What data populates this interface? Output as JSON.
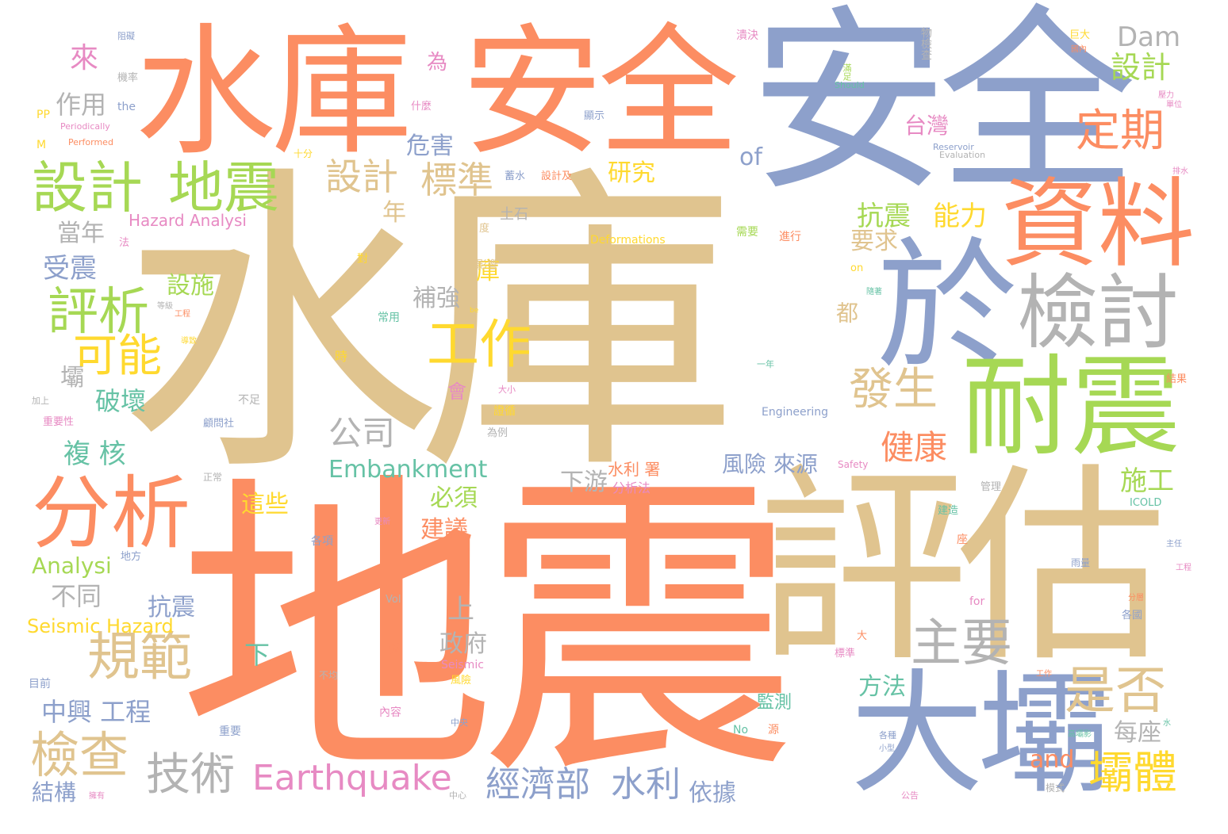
{
  "colors": {
    "tan": "#e0c48f",
    "orange": "#fc8d62",
    "blue": "#8da0cb",
    "green": "#a6d854",
    "gray": "#b3b3b3",
    "yellow": "#ffd92f",
    "pink": "#e78ac3",
    "teal": "#66c2a5"
  },
  "words": [
    {
      "text": "水庫",
      "color": "tan"
    },
    {
      "text": "地震",
      "color": "orange"
    },
    {
      "text": "安全",
      "color": "blue"
    },
    {
      "text": "水庫",
      "color": "orange"
    },
    {
      "text": "安全",
      "color": "orange"
    },
    {
      "text": "評估",
      "color": "tan"
    },
    {
      "text": "於",
      "color": "blue"
    },
    {
      "text": "資料",
      "color": "orange"
    },
    {
      "text": "耐震",
      "color": "green"
    },
    {
      "text": "檢討",
      "color": "gray"
    },
    {
      "text": "大壩",
      "color": "blue"
    },
    {
      "text": "分析",
      "color": "orange"
    },
    {
      "text": "設計",
      "color": "green"
    },
    {
      "text": "地震",
      "color": "green"
    },
    {
      "text": "評析",
      "color": "green"
    },
    {
      "text": "工作",
      "color": "yellow"
    },
    {
      "text": "規範",
      "color": "tan"
    },
    {
      "text": "主要",
      "color": "gray"
    },
    {
      "text": "是否",
      "color": "tan"
    },
    {
      "text": "發生",
      "color": "tan"
    },
    {
      "text": "定期",
      "color": "orange"
    },
    {
      "text": "檢查",
      "color": "tan"
    },
    {
      "text": "技術",
      "color": "gray"
    },
    {
      "text": "Earthquake",
      "color": "pink"
    },
    {
      "text": "壩體",
      "color": "yellow"
    },
    {
      "text": "可能",
      "color": "yellow"
    },
    {
      "text": "設計",
      "color": "tan"
    },
    {
      "text": "標準",
      "color": "tan"
    },
    {
      "text": "公司",
      "color": "gray"
    },
    {
      "text": "經濟部",
      "color": "blue"
    },
    {
      "text": "水利",
      "color": "blue"
    },
    {
      "text": "健康",
      "color": "orange"
    },
    {
      "text": "抗震",
      "color": "green"
    },
    {
      "text": "能力",
      "color": "yellow"
    },
    {
      "text": "Dam",
      "color": "gray"
    },
    {
      "text": "設計",
      "color": "green"
    },
    {
      "text": "台灣",
      "color": "pink"
    },
    {
      "text": "危害",
      "color": "blue"
    },
    {
      "text": "研究",
      "color": "yellow"
    },
    {
      "text": "來",
      "color": "pink"
    },
    {
      "text": "作用",
      "color": "gray"
    },
    {
      "text": "要求",
      "color": "tan"
    },
    {
      "text": "of",
      "color": "blue"
    },
    {
      "text": "年",
      "color": "tan"
    },
    {
      "text": "當年",
      "color": "gray"
    },
    {
      "text": "受震",
      "color": "blue"
    },
    {
      "text": "設施",
      "color": "green"
    },
    {
      "text": "補強",
      "color": "gray"
    },
    {
      "text": "庫",
      "color": "yellow"
    },
    {
      "text": "都",
      "color": "tan"
    },
    {
      "text": "壩",
      "color": "gray"
    },
    {
      "text": "破壞",
      "color": "teal"
    },
    {
      "text": "複 核",
      "color": "teal"
    },
    {
      "text": "Embankment",
      "color": "teal"
    },
    {
      "text": "風險 來源",
      "color": "blue"
    },
    {
      "text": "下游",
      "color": "gray"
    },
    {
      "text": "施工",
      "color": "green"
    },
    {
      "text": "必須",
      "color": "green"
    },
    {
      "text": "這些",
      "color": "yellow"
    },
    {
      "text": "建議",
      "color": "orange"
    },
    {
      "text": "Analysi",
      "color": "green"
    },
    {
      "text": "不同",
      "color": "gray"
    },
    {
      "text": "抗震",
      "color": "blue"
    },
    {
      "text": "Seismic Hazard",
      "color": "yellow"
    },
    {
      "text": "上",
      "color": "gray"
    },
    {
      "text": "政府",
      "color": "gray"
    },
    {
      "text": "下",
      "color": "teal"
    },
    {
      "text": "方法",
      "color": "teal"
    },
    {
      "text": "每座",
      "color": "gray"
    },
    {
      "text": "中興 工程",
      "color": "blue"
    },
    {
      "text": "and",
      "color": "orange"
    },
    {
      "text": "結構",
      "color": "blue"
    },
    {
      "text": "依據",
      "color": "blue"
    },
    {
      "text": "水利 署",
      "color": "orange"
    },
    {
      "text": "Hazard Analysi",
      "color": "pink"
    },
    {
      "text": "Deformations",
      "color": "yellow"
    },
    {
      "text": "為",
      "color": "pink"
    },
    {
      "text": "土石",
      "color": "gray"
    },
    {
      "text": "Engineering",
      "color": "blue"
    },
    {
      "text": "會",
      "color": "pink"
    },
    {
      "text": "監測",
      "color": "teal"
    },
    {
      "text": "Safety",
      "color": "pink"
    },
    {
      "text": "Reservoir",
      "color": "blue"
    },
    {
      "text": "Evaluation",
      "color": "gray"
    },
    {
      "text": "Should",
      "color": "teal"
    },
    {
      "text": "Periodically",
      "color": "pink"
    },
    {
      "text": "Performed",
      "color": "orange"
    },
    {
      "text": "the",
      "color": "blue"
    },
    {
      "text": "PP",
      "color": "yellow"
    },
    {
      "text": "M",
      "color": "yellow"
    },
    {
      "text": "ICOLD",
      "color": "teal"
    },
    {
      "text": "Seismic",
      "color": "pink"
    },
    {
      "text": "Vol",
      "color": "gray"
    },
    {
      "text": "for",
      "color": "pink"
    },
    {
      "text": "No",
      "color": "teal"
    },
    {
      "text": "on",
      "color": "yellow"
    },
    {
      "text": "be",
      "color": "yellow"
    },
    {
      "text": "分析法",
      "color": "pink"
    },
    {
      "text": "什麼",
      "color": "pink"
    },
    {
      "text": "顯示",
      "color": "blue"
    },
    {
      "text": "機率",
      "color": "gray"
    },
    {
      "text": "蓄水",
      "color": "blue"
    },
    {
      "text": "設計及",
      "color": "orange"
    },
    {
      "text": "物檢查",
      "color": "gray"
    },
    {
      "text": "滿足",
      "color": "green"
    },
    {
      "text": "潰決",
      "color": "pink"
    },
    {
      "text": "巨大",
      "color": "yellow"
    },
    {
      "text": "十分",
      "color": "yellow"
    },
    {
      "text": "需要",
      "color": "green"
    },
    {
      "text": "進行",
      "color": "orange"
    },
    {
      "text": "影響",
      "color": "tan"
    },
    {
      "text": "常用",
      "color": "teal"
    },
    {
      "text": "時",
      "color": "yellow"
    },
    {
      "text": "為例",
      "color": "gray"
    },
    {
      "text": "不足",
      "color": "gray"
    },
    {
      "text": "重要性",
      "color": "pink"
    },
    {
      "text": "加上",
      "color": "gray"
    },
    {
      "text": "顧問社",
      "color": "blue"
    },
    {
      "text": "證循",
      "color": "yellow"
    },
    {
      "text": "大小",
      "color": "pink"
    },
    {
      "text": "正常",
      "color": "gray"
    },
    {
      "text": "各項",
      "color": "blue"
    },
    {
      "text": "地方",
      "color": "blue"
    },
    {
      "text": "內容",
      "color": "pink"
    },
    {
      "text": "風險",
      "color": "yellow"
    },
    {
      "text": "管理",
      "color": "gray"
    },
    {
      "text": "建造",
      "color": "teal"
    },
    {
      "text": "標準",
      "color": "pink"
    },
    {
      "text": "大",
      "color": "orange"
    },
    {
      "text": "各國",
      "color": "blue"
    },
    {
      "text": "結果",
      "color": "orange"
    },
    {
      "text": "水",
      "color": "teal"
    },
    {
      "text": "重要",
      "color": "blue"
    },
    {
      "text": "目前",
      "color": "blue"
    },
    {
      "text": "模式",
      "color": "gray"
    },
    {
      "text": "不均",
      "color": "gray"
    },
    {
      "text": "源",
      "color": "orange"
    },
    {
      "text": "係",
      "color": "orange"
    },
    {
      "text": "座",
      "color": "orange"
    },
    {
      "text": "度",
      "color": "tan"
    },
    {
      "text": "法",
      "color": "pink"
    },
    {
      "text": "對",
      "color": "yellow"
    },
    {
      "text": "中央",
      "color": "blue"
    },
    {
      "text": "中心",
      "color": "gray"
    },
    {
      "text": "公告",
      "color": "pink"
    },
    {
      "text": "工作",
      "color": "orange"
    },
    {
      "text": "工程",
      "color": "pink"
    },
    {
      "text": "一年",
      "color": "teal"
    },
    {
      "text": "雨量",
      "color": "blue"
    },
    {
      "text": "分層",
      "color": "orange"
    },
    {
      "text": "主任",
      "color": "blue"
    },
    {
      "text": "高壩影",
      "color": "teal"
    },
    {
      "text": "各種",
      "color": "blue"
    },
    {
      "text": "小型",
      "color": "blue"
    },
    {
      "text": "國內",
      "color": "orange"
    },
    {
      "text": "單位",
      "color": "pink"
    },
    {
      "text": "壓力",
      "color": "pink"
    },
    {
      "text": "排水",
      "color": "pink"
    },
    {
      "text": "等級",
      "color": "gray"
    },
    {
      "text": "導致",
      "color": "yellow"
    },
    {
      "text": "工程",
      "color": "orange"
    },
    {
      "text": "隨著",
      "color": "teal"
    },
    {
      "text": "更新",
      "color": "pink"
    },
    {
      "text": "阻礙",
      "color": "blue"
    },
    {
      "text": "擁有",
      "color": "pink"
    }
  ]
}
